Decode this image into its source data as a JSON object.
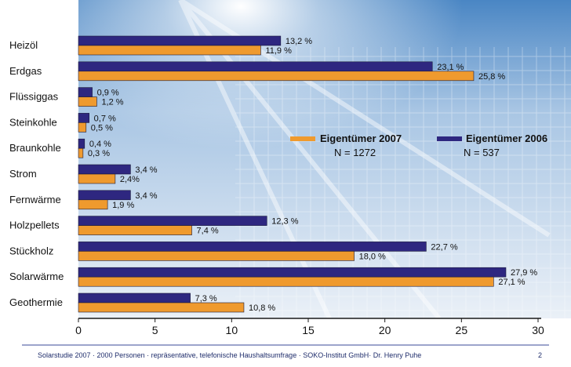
{
  "chart_data": {
    "type": "bar",
    "orientation": "horizontal",
    "categories": [
      "Heizöl",
      "Erdgas",
      "Flüssiggas",
      "Steinkohle",
      "Braunkohle",
      "Strom",
      "Fernwärme",
      "Holzpellets",
      "Stückholz",
      "Solarwärme",
      "Geothermie"
    ],
    "series": [
      {
        "name": "Eigentümer 2006",
        "n_label": "N = 537",
        "color": "#2e2780",
        "values": [
          13.2,
          23.1,
          0.9,
          0.7,
          0.4,
          3.4,
          3.4,
          12.3,
          22.7,
          27.9,
          7.3
        ],
        "labels": [
          "13,2 %",
          "23,1 %",
          "0,9 %",
          "0,7 %",
          "0,4 %",
          "3,4 %",
          "3,4 %",
          "12,3 %",
          "22,7 %",
          "27,9 %",
          "7,3 %"
        ]
      },
      {
        "name": "Eigentümer 2007",
        "n_label": "N = 1272",
        "color": "#ef9a2e",
        "values": [
          11.9,
          25.8,
          1.2,
          0.5,
          0.3,
          2.4,
          1.9,
          7.4,
          18.0,
          27.1,
          10.8
        ],
        "labels": [
          "11,9 %",
          "25,8 %",
          "1,2 %",
          "0,5 %",
          "0,3 %",
          "2,4%",
          "1,9 %",
          "7,4 %",
          "18,0 %",
          "27,1 %",
          "10,8 %"
        ]
      }
    ],
    "xlim": [
      0,
      30
    ],
    "xticks": [
      0,
      5,
      10,
      15,
      20,
      25,
      30
    ],
    "xtick_labels": [
      "0",
      "5",
      "10",
      "15",
      "20",
      "25",
      "30"
    ],
    "title": "",
    "xlabel": "",
    "ylabel": "",
    "legend_position": "right-middle"
  },
  "footer": {
    "text": "Solarstudie  2007  ·  2000 Personen   ·  repräsentative, telefonische Haushaltsumfrage  ·  SOKO-Institut GmbH·  Dr. Henry Puhe",
    "page_number": "2"
  },
  "colors": {
    "axis": "#1a1a1a",
    "footer_line": "#3a4a9a",
    "sky_top": "#4a86c4",
    "sky_bottom": "#e4edf6"
  }
}
